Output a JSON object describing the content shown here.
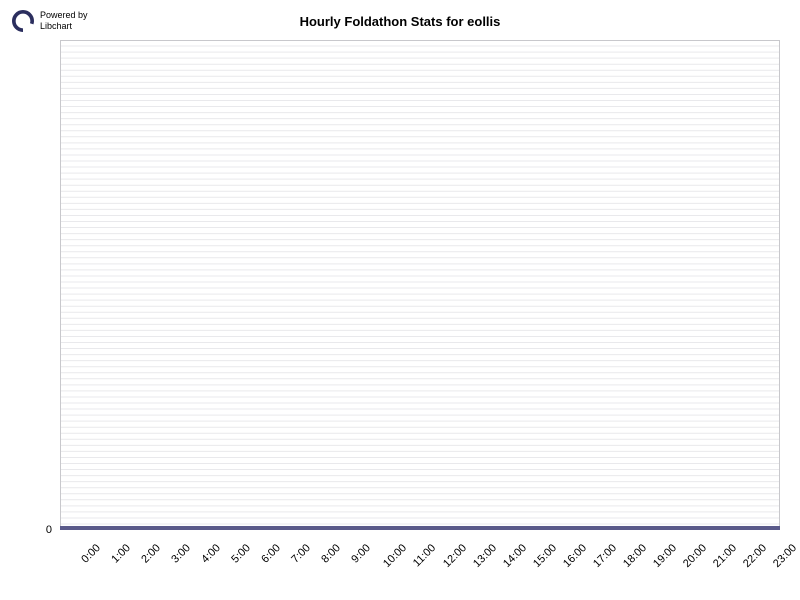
{
  "branding": {
    "powered_line1": "Powered by",
    "powered_line2": "Libchart",
    "logo_color": "#2b2e5e"
  },
  "chart": {
    "type": "bar",
    "title": "Hourly Foldathon Stats for eollis",
    "title_fontsize": 13,
    "title_fontweight": "bold",
    "background_color": "#ffffff",
    "plot_border_color": "#c8c8cc",
    "grid_line_color": "#e9e9ec",
    "grid_line_count": 80,
    "baseline_color": "#5a5a8a",
    "baseline_height": 4,
    "tick_color": "#000000",
    "tick_length": 5,
    "x_labels": [
      "0:00",
      "1:00",
      "2:00",
      "3:00",
      "4:00",
      "5:00",
      "6:00",
      "7:00",
      "8:00",
      "9:00",
      "10:00",
      "11:00",
      "12:00",
      "13:00",
      "14:00",
      "15:00",
      "16:00",
      "17:00",
      "18:00",
      "19:00",
      "20:00",
      "21:00",
      "22:00",
      "23:00"
    ],
    "x_label_fontsize": 11,
    "x_label_rotation_deg": -45,
    "y_labels": [
      "0"
    ],
    "y_label_positions_pct": [
      100
    ],
    "y_label_fontsize": 11,
    "values": [
      0,
      0,
      0,
      0,
      0,
      0,
      0,
      0,
      0,
      0,
      0,
      0,
      0,
      0,
      0,
      0,
      0,
      0,
      0,
      0,
      0,
      0,
      0,
      0
    ],
    "ylim": [
      0,
      0
    ],
    "bar_color": "#5a5a8a"
  }
}
